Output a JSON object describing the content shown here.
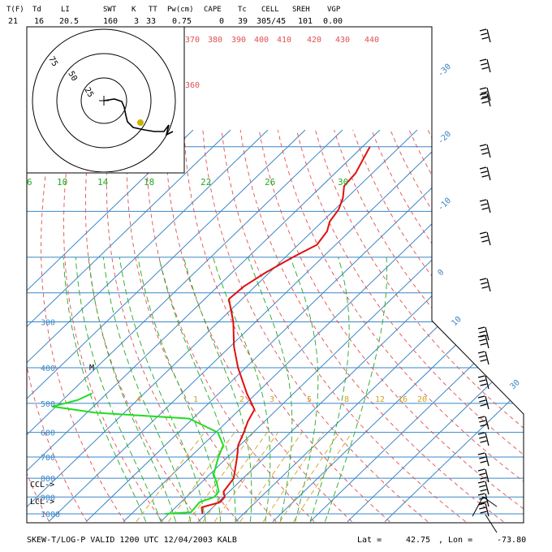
{
  "header": {
    "labels": [
      "T(F)",
      "Td",
      "LI",
      "SWT",
      "K",
      "TT",
      "Pw(cm)",
      "CAPE",
      "Tc",
      "CELL",
      "SREH",
      "VGP"
    ],
    "values": [
      "21",
      "16",
      "20.5",
      "160",
      "3",
      "33",
      "0.75",
      "0",
      "39",
      "305/45",
      "101",
      "0.00"
    ]
  },
  "footer": {
    "title": "SKEW-T/LOG-P VALID 1200 UTC 12/04/2003   KALB",
    "lat_label": "Lat =",
    "lat_value": "42.75",
    "sep": ",",
    "lon_label": "Lon =",
    "lon_value": "-73.80"
  },
  "annotations": {
    "ccl": "CCL->",
    "lcl": "LCL->",
    "m": "M"
  },
  "colors": {
    "isobar": "#3a86c8",
    "isotherm": "#3a86c8",
    "dry_adiabat": "#e05050",
    "moist_adiabat": "#22aa22",
    "mixing_ratio": "#d4a020",
    "temperature": "#e01010",
    "dewpoint": "#22dd22",
    "frame": "#000000"
  },
  "chart_data": {
    "type": "line",
    "pressure_levels_mb": [
      300,
      400,
      500,
      600,
      700,
      800,
      900,
      1000
    ],
    "pressure_labels": [
      "300",
      "400",
      "500",
      "600",
      "700",
      "800",
      "900",
      "1000"
    ],
    "isotherm_labels_c": [
      "-30",
      "-20",
      "-10",
      "0",
      "10",
      "30"
    ],
    "dry_adiabat_labels_k": [
      "370",
      "380",
      "390",
      "400",
      "410",
      "420",
      "430",
      "440",
      "360"
    ],
    "moist_adiabat_labels_c": [
      "6",
      "10",
      "14",
      "18",
      "22",
      "26",
      "30"
    ],
    "mixing_ratio_labels_gkg": [
      "4",
      "1",
      "2",
      "3",
      "5",
      "8",
      "12",
      "16",
      "20"
    ],
    "series": [
      {
        "name": "",
        "kind": "temperature",
        "points": [
          {
            "p": 1000,
            "t": -1.0
          },
          {
            "p": 960,
            "t": -3.0
          },
          {
            "p": 930,
            "t": 0.5
          },
          {
            "p": 900,
            "t": 0.3
          },
          {
            "p": 870,
            "t": -1.5
          },
          {
            "p": 800,
            "t": -2.5
          },
          {
            "p": 700,
            "t": -7.5
          },
          {
            "p": 650,
            "t": -10.5
          },
          {
            "p": 600,
            "t": -12.5
          },
          {
            "p": 560,
            "t": -14.5
          },
          {
            "p": 520,
            "t": -16.0
          },
          {
            "p": 500,
            "t": -18.5
          },
          {
            "p": 470,
            "t": -22.5
          },
          {
            "p": 400,
            "t": -32.0
          },
          {
            "p": 350,
            "t": -39.0
          },
          {
            "p": 300,
            "t": -46.0
          },
          {
            "p": 260,
            "t": -53.5
          },
          {
            "p": 240,
            "t": -53.0
          },
          {
            "p": 220,
            "t": -51.0
          },
          {
            "p": 200,
            "t": -48.0
          },
          {
            "p": 185,
            "t": -45.0
          },
          {
            "p": 170,
            "t": -46.0
          },
          {
            "p": 160,
            "t": -48.0
          },
          {
            "p": 148,
            "t": -49.0
          },
          {
            "p": 138,
            "t": -51.0
          },
          {
            "p": 128,
            "t": -54.0
          },
          {
            "p": 118,
            "t": -54.5
          },
          {
            "p": 110,
            "t": -56.0
          },
          {
            "p": 100,
            "t": -58.0
          }
        ]
      },
      {
        "name": "",
        "kind": "dewpoint",
        "points": [
          {
            "p": 1000,
            "t": -11.0
          },
          {
            "p": 990,
            "t": -4.5
          },
          {
            "p": 930,
            "t": -5.0
          },
          {
            "p": 900,
            "t": -2.5
          },
          {
            "p": 870,
            "t": -2.8
          },
          {
            "p": 820,
            "t": -6.0
          },
          {
            "p": 780,
            "t": -9.0
          },
          {
            "p": 700,
            "t": -12.5
          },
          {
            "p": 650,
            "t": -14.5
          },
          {
            "p": 600,
            "t": -19.5
          },
          {
            "p": 550,
            "t": -31.0
          },
          {
            "p": 530,
            "t": -58.0
          },
          {
            "p": 510,
            "t": -71.0
          },
          {
            "p": 490,
            "t": -66.0
          },
          {
            "p": 470,
            "t": -64.0
          }
        ]
      }
    ],
    "hodograph": {
      "ring_labels": [
        "75",
        "50",
        "25"
      ],
      "points": [
        [
          0,
          0
        ],
        [
          13,
          -2
        ],
        [
          22,
          1
        ],
        [
          25,
          8
        ],
        [
          27,
          18
        ],
        [
          29,
          26
        ],
        [
          36,
          33
        ],
        [
          50,
          36
        ],
        [
          62,
          38
        ],
        [
          74,
          38
        ],
        [
          80,
          30
        ],
        [
          77,
          42
        ],
        [
          85,
          38
        ]
      ]
    }
  }
}
